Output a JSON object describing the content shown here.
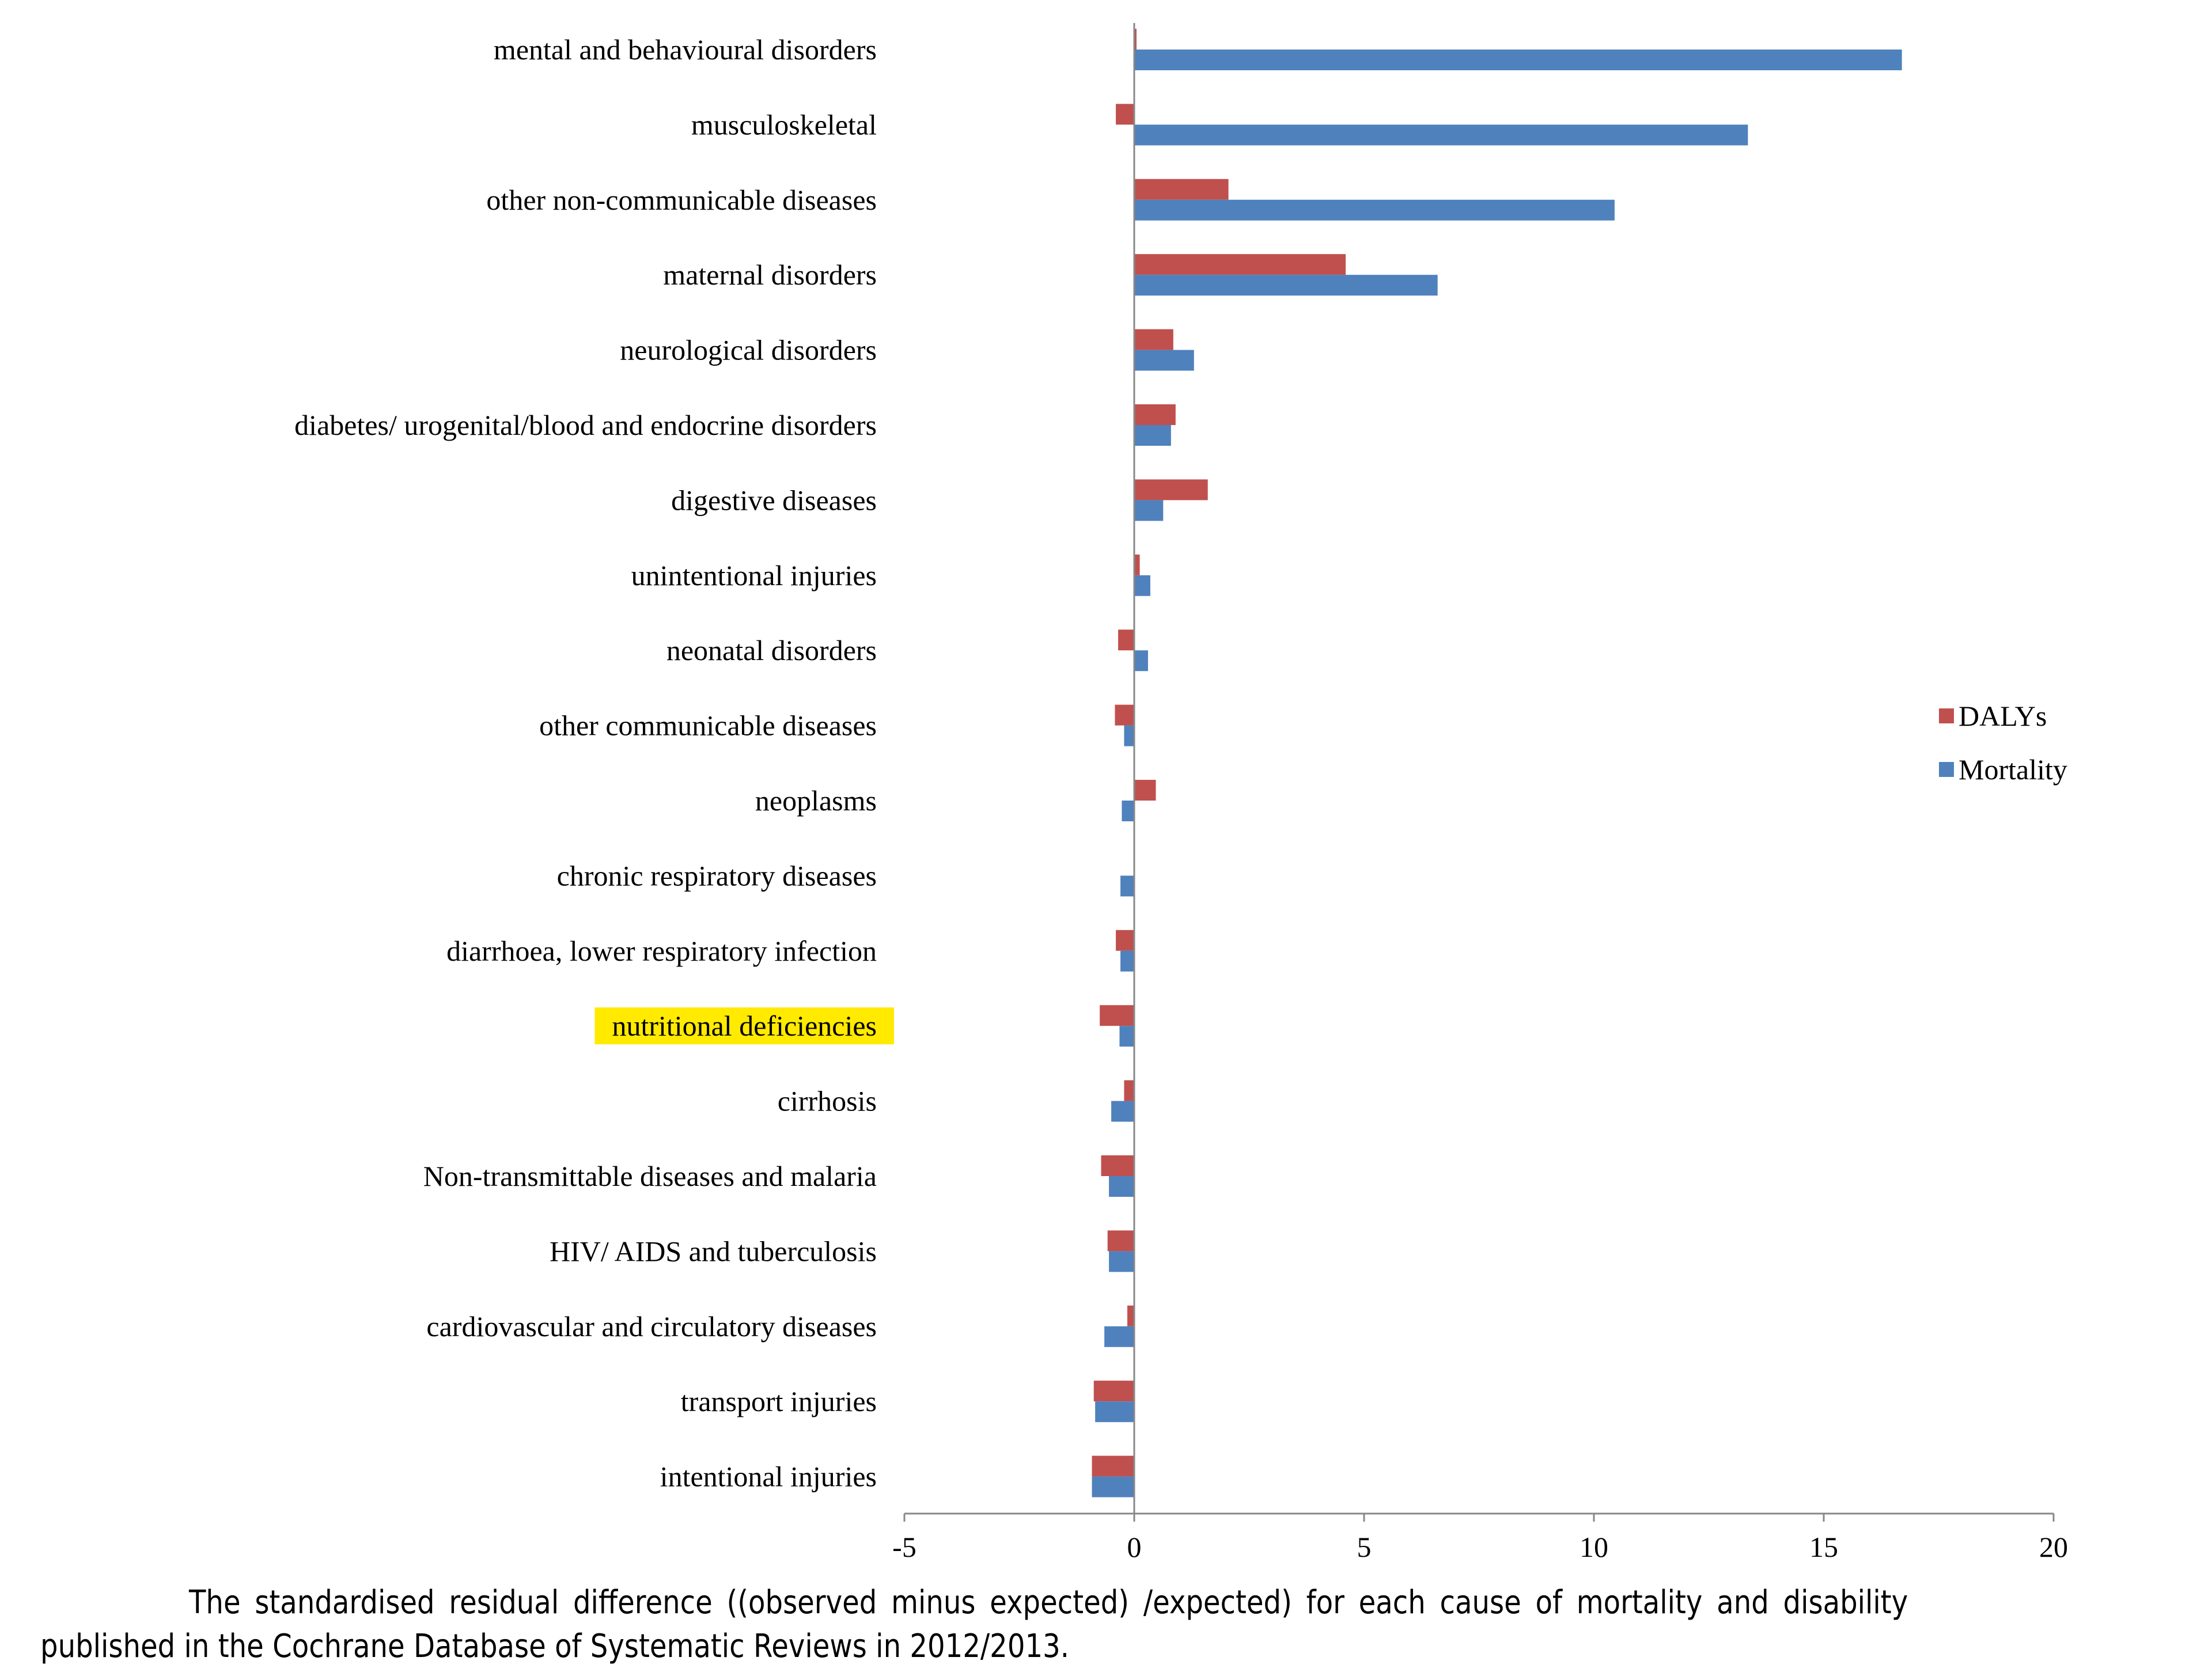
{
  "chart_data": {
    "type": "bar",
    "orientation": "horizontal",
    "categories": [
      "mental and behavioural disorders",
      "musculoskeletal",
      "other non-communicable diseases",
      "maternal disorders",
      "neurological disorders",
      "diabetes/ urogenital/blood and endocrine disorders",
      "digestive diseases",
      "unintentional injuries",
      "neonatal disorders",
      "other communicable diseases",
      "neoplasms",
      "chronic respiratory diseases",
      "diarrhoea, lower respiratory infection",
      "nutritional deficiencies",
      "cirrhosis",
      "Non-transmittable diseases and malaria",
      "HIV/ AIDS and tuberculosis",
      "cardiovascular and circulatory diseases",
      "transport injuries",
      "intentional injuries"
    ],
    "series": [
      {
        "name": "DALYs",
        "color": "#c0504d",
        "values": [
          0.05,
          -0.4,
          2.05,
          4.6,
          0.85,
          0.9,
          1.6,
          0.12,
          -0.35,
          -0.42,
          0.47,
          0,
          -0.4,
          -0.75,
          -0.22,
          -0.72,
          -0.58,
          -0.15,
          -0.88,
          -0.92
        ]
      },
      {
        "name": "Mortality",
        "color": "#4f81bd",
        "values": [
          16.7,
          13.35,
          10.45,
          6.6,
          1.3,
          0.8,
          0.63,
          0.35,
          0.3,
          -0.22,
          -0.27,
          -0.3,
          -0.3,
          -0.32,
          -0.5,
          -0.55,
          -0.55,
          -0.65,
          -0.85,
          -0.92
        ]
      }
    ],
    "xlim": [
      -5,
      20
    ],
    "xticks": [
      -5,
      0,
      5,
      10,
      15,
      20
    ],
    "tick_labels": [
      "-5",
      "0",
      "5",
      "10",
      "15",
      "20"
    ],
    "legend_position": "right",
    "highlighted_category": "nutritional deficiencies",
    "highlight_color": "#ffea00",
    "grid": false
  },
  "caption": "The standardised residual difference ((observed minus expected) /expected) for each cause of mortality and disability published in the Cochrane Database of Systematic Reviews in 2012/2013."
}
